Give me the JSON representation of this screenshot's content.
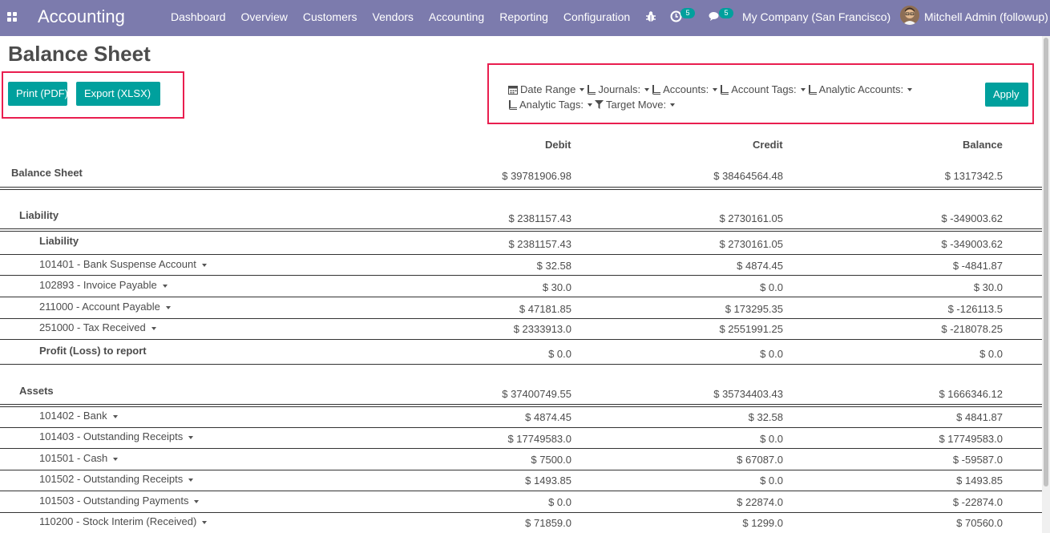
{
  "navbar": {
    "brand": "Accounting",
    "menu": [
      "Dashboard",
      "Overview",
      "Customers",
      "Vendors",
      "Accounting",
      "Reporting",
      "Configuration"
    ],
    "activity_count": "5",
    "message_count": "5",
    "company": "My Company (San Francisco)",
    "user": "Mitchell Admin (followup)"
  },
  "page": {
    "title": "Balance Sheet",
    "print_label": "Print (PDF)",
    "export_label": "Export (XLSX)",
    "apply_label": "Apply"
  },
  "filters": {
    "line1": [
      {
        "icon": "calendar-icon",
        "label": "Date Range"
      },
      {
        "icon": "book-icon",
        "label": "Journals:"
      },
      {
        "icon": "book-icon",
        "label": "Accounts:"
      },
      {
        "icon": "book-icon",
        "label": "Account Tags:"
      },
      {
        "icon": "book-icon",
        "label": "Analytic Accounts:"
      }
    ],
    "line2": [
      {
        "icon": "book-icon",
        "label": "Analytic Tags:"
      },
      {
        "icon": "filter-icon",
        "label": "Target Move:"
      }
    ]
  },
  "table": {
    "headers": {
      "debit": "Debit",
      "credit": "Credit",
      "balance": "Balance"
    },
    "rows": [
      {
        "name": "Balance Sheet",
        "debit": "$ 39781906.98",
        "credit": "$ 38464564.48",
        "balance": "$ 1317342.5"
      },
      {
        "name": "Liability",
        "debit": "$ 2381157.43",
        "credit": "$ 2730161.05",
        "balance": "$ -349003.62"
      },
      {
        "name": "Liability",
        "debit": "$ 2381157.43",
        "credit": "$ 2730161.05",
        "balance": "$ -349003.62"
      },
      {
        "name": "101401 - Bank Suspense Account",
        "debit": "$ 32.58",
        "credit": "$ 4874.45",
        "balance": "$ -4841.87"
      },
      {
        "name": "102893 - Invoice Payable",
        "debit": "$ 30.0",
        "credit": "$ 0.0",
        "balance": "$ 30.0"
      },
      {
        "name": "211000 - Account Payable",
        "debit": "$ 47181.85",
        "credit": "$ 173295.35",
        "balance": "$ -126113.5"
      },
      {
        "name": "251000 - Tax Received",
        "debit": "$ 2333913.0",
        "credit": "$ 2551991.25",
        "balance": "$ -218078.25"
      },
      {
        "name": "Profit (Loss) to report",
        "debit": "$ 0.0",
        "credit": "$ 0.0",
        "balance": "$ 0.0"
      },
      {
        "name": "Assets",
        "debit": "$ 37400749.55",
        "credit": "$ 35734403.43",
        "balance": "$ 1666346.12"
      },
      {
        "name": "101402 - Bank",
        "debit": "$ 4874.45",
        "credit": "$ 32.58",
        "balance": "$ 4841.87"
      },
      {
        "name": "101403 - Outstanding Receipts",
        "debit": "$ 17749583.0",
        "credit": "$ 0.0",
        "balance": "$ 17749583.0"
      },
      {
        "name": "101501 - Cash",
        "debit": "$ 7500.0",
        "credit": "$ 67087.0",
        "balance": "$ -59587.0"
      },
      {
        "name": "101502 - Outstanding Receipts",
        "debit": "$ 1493.85",
        "credit": "$ 0.0",
        "balance": "$ 1493.85"
      },
      {
        "name": "101503 - Outstanding Payments",
        "debit": "$ 0.0",
        "credit": "$ 22874.0",
        "balance": "$ -22874.0"
      },
      {
        "name": "110200 - Stock Interim (Received)",
        "debit": "$ 71859.0",
        "credit": "$ 1299.0",
        "balance": "$ 70560.0"
      }
    ]
  },
  "colors": {
    "navbar": "#7c7bad",
    "primary": "#00a09d",
    "highlight": "#e91e4f"
  }
}
